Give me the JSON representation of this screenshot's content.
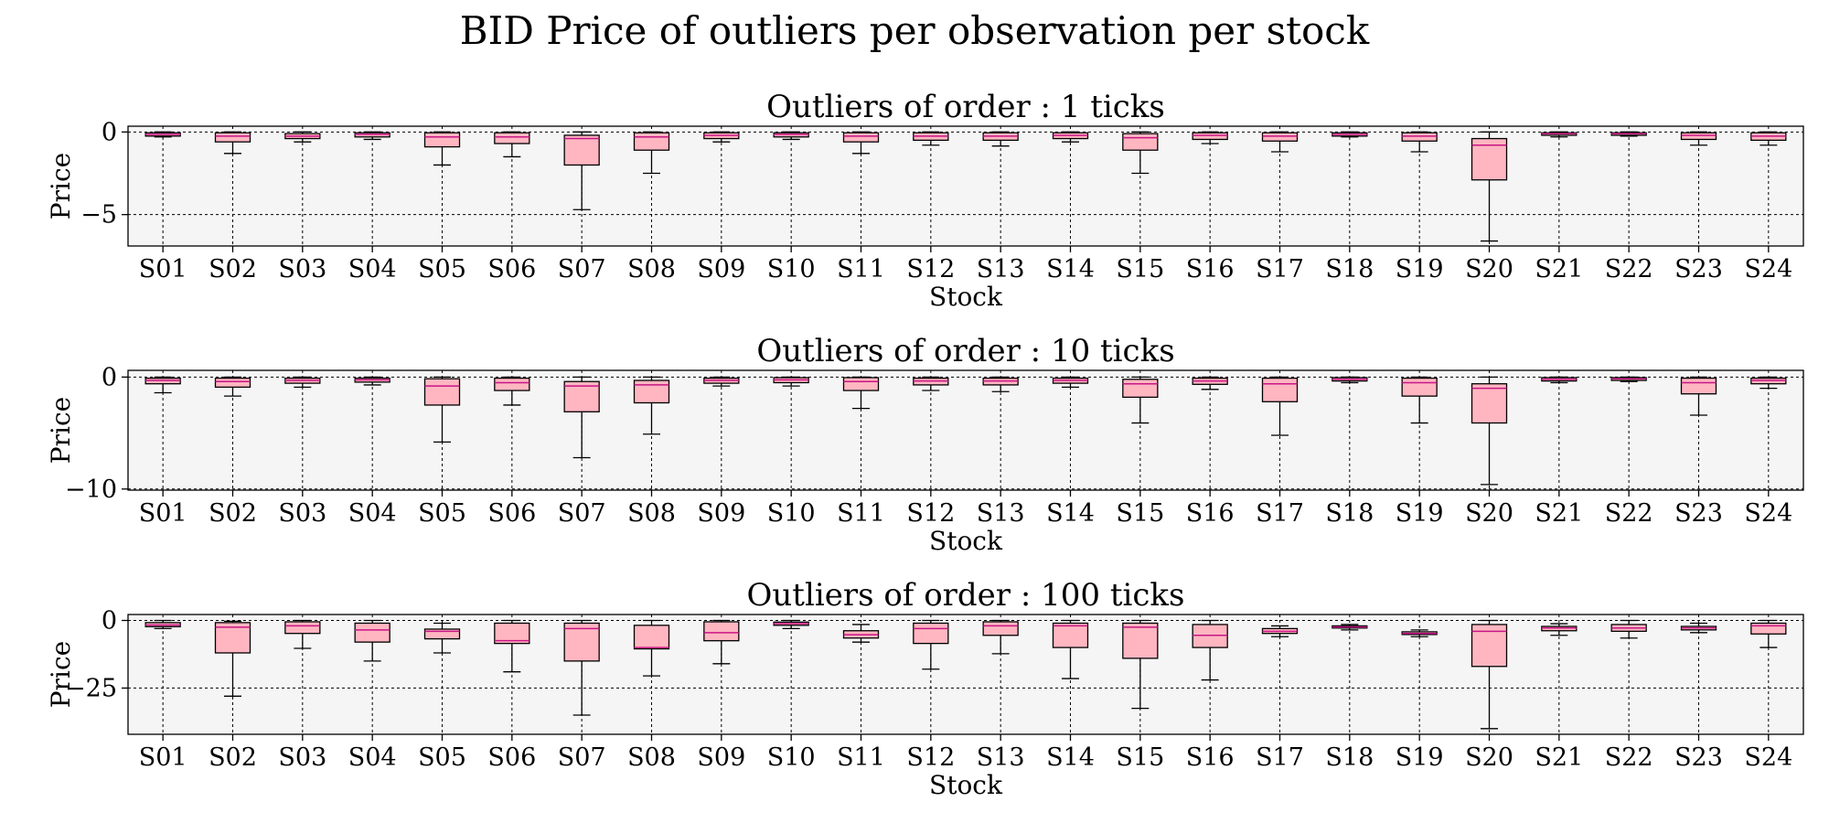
{
  "title": "BID Price of outliers per observation per stock",
  "colors": {
    "box_fill": "#ffb6c1",
    "box_edge": "#000000",
    "median": "#c71585",
    "axes_bg": "#f5f5f5",
    "grid": "#000000"
  },
  "chart_data": [
    {
      "type": "box",
      "title": "Outliers of order : 1 ticks",
      "xlabel": "Stock",
      "ylabel": "Price",
      "ylim": [
        -6.9,
        0.35
      ],
      "yticks": [
        0,
        -5
      ],
      "ytick_labels": [
        "0",
        "−5"
      ],
      "grid": true,
      "categories": [
        "S01",
        "S02",
        "S03",
        "S04",
        "S05",
        "S06",
        "S07",
        "S08",
        "S09",
        "S10",
        "S11",
        "S12",
        "S13",
        "S14",
        "S15",
        "S16",
        "S17",
        "S18",
        "S19",
        "S20",
        "S21",
        "S22",
        "S23",
        "S24"
      ],
      "boxes": [
        {
          "whislo": -0.3,
          "q1": -0.25,
          "med": -0.15,
          "q3": -0.05,
          "whishi": 0
        },
        {
          "whislo": -1.3,
          "q1": -0.6,
          "med": -0.25,
          "q3": -0.05,
          "whishi": 0
        },
        {
          "whislo": -0.6,
          "q1": -0.4,
          "med": -0.25,
          "q3": -0.1,
          "whishi": 0
        },
        {
          "whislo": -0.45,
          "q1": -0.3,
          "med": -0.15,
          "q3": -0.05,
          "whishi": 0
        },
        {
          "whislo": -2.0,
          "q1": -0.9,
          "med": -0.3,
          "q3": -0.05,
          "whishi": 0
        },
        {
          "whislo": -1.5,
          "q1": -0.7,
          "med": -0.3,
          "q3": -0.05,
          "whishi": 0
        },
        {
          "whislo": -4.7,
          "q1": -2.0,
          "med": -0.4,
          "q3": -0.2,
          "whishi": 0
        },
        {
          "whislo": -2.5,
          "q1": -1.1,
          "med": -0.3,
          "q3": -0.05,
          "whishi": 0
        },
        {
          "whislo": -0.6,
          "q1": -0.4,
          "med": -0.2,
          "q3": -0.05,
          "whishi": 0
        },
        {
          "whislo": -0.45,
          "q1": -0.3,
          "med": -0.15,
          "q3": -0.05,
          "whishi": 0
        },
        {
          "whislo": -1.3,
          "q1": -0.6,
          "med": -0.25,
          "q3": -0.05,
          "whishi": 0
        },
        {
          "whislo": -0.8,
          "q1": -0.5,
          "med": -0.25,
          "q3": -0.05,
          "whishi": 0
        },
        {
          "whislo": -0.85,
          "q1": -0.5,
          "med": -0.25,
          "q3": -0.05,
          "whishi": 0
        },
        {
          "whislo": -0.6,
          "q1": -0.4,
          "med": -0.2,
          "q3": -0.05,
          "whishi": 0
        },
        {
          "whislo": -2.5,
          "q1": -1.1,
          "med": -0.35,
          "q3": -0.1,
          "whishi": 0
        },
        {
          "whislo": -0.7,
          "q1": -0.45,
          "med": -0.2,
          "q3": -0.05,
          "whishi": 0
        },
        {
          "whislo": -1.2,
          "q1": -0.55,
          "med": -0.25,
          "q3": -0.05,
          "whishi": 0
        },
        {
          "whislo": -0.3,
          "q1": -0.25,
          "med": -0.15,
          "q3": -0.05,
          "whishi": 0
        },
        {
          "whislo": -1.2,
          "q1": -0.55,
          "med": -0.25,
          "q3": -0.05,
          "whishi": 0
        },
        {
          "whislo": -6.6,
          "q1": -2.9,
          "med": -0.8,
          "q3": -0.4,
          "whishi": 0
        },
        {
          "whislo": -0.3,
          "q1": -0.2,
          "med": -0.1,
          "q3": -0.05,
          "whishi": 0
        },
        {
          "whislo": -0.25,
          "q1": -0.2,
          "med": -0.1,
          "q3": -0.05,
          "whishi": 0
        },
        {
          "whislo": -0.8,
          "q1": -0.45,
          "med": -0.2,
          "q3": -0.05,
          "whishi": 0
        },
        {
          "whislo": -0.8,
          "q1": -0.5,
          "med": -0.25,
          "q3": -0.05,
          "whishi": 0
        }
      ]
    },
    {
      "type": "box",
      "title": "Outliers of order : 10 ticks",
      "xlabel": "Stock",
      "ylabel": "Price",
      "ylim": [
        -10.1,
        0.6
      ],
      "yticks": [
        0,
        -10
      ],
      "ytick_labels": [
        "0",
        "−10"
      ],
      "grid": true,
      "categories": [
        "S01",
        "S02",
        "S03",
        "S04",
        "S05",
        "S06",
        "S07",
        "S08",
        "S09",
        "S10",
        "S11",
        "S12",
        "S13",
        "S14",
        "S15",
        "S16",
        "S17",
        "S18",
        "S19",
        "S20",
        "S21",
        "S22",
        "S23",
        "S24"
      ],
      "boxes": [
        {
          "whislo": -1.4,
          "q1": -0.6,
          "med": -0.3,
          "q3": -0.1,
          "whishi": 0
        },
        {
          "whislo": -1.7,
          "q1": -0.9,
          "med": -0.4,
          "q3": -0.1,
          "whishi": 0
        },
        {
          "whislo": -0.9,
          "q1": -0.55,
          "med": -0.3,
          "q3": -0.1,
          "whishi": 0
        },
        {
          "whislo": -0.7,
          "q1": -0.45,
          "med": -0.25,
          "q3": -0.1,
          "whishi": 0
        },
        {
          "whislo": -5.8,
          "q1": -2.5,
          "med": -0.8,
          "q3": -0.15,
          "whishi": 0
        },
        {
          "whislo": -2.5,
          "q1": -1.2,
          "med": -0.5,
          "q3": -0.1,
          "whishi": 0
        },
        {
          "whislo": -7.2,
          "q1": -3.1,
          "med": -0.8,
          "q3": -0.4,
          "whishi": 0
        },
        {
          "whislo": -5.1,
          "q1": -2.3,
          "med": -0.7,
          "q3": -0.3,
          "whishi": 0
        },
        {
          "whislo": -0.8,
          "q1": -0.55,
          "med": -0.3,
          "q3": -0.1,
          "whishi": 0
        },
        {
          "whislo": -0.8,
          "q1": -0.5,
          "med": -0.25,
          "q3": -0.05,
          "whishi": 0
        },
        {
          "whislo": -2.8,
          "q1": -1.2,
          "med": -0.4,
          "q3": -0.05,
          "whishi": 0
        },
        {
          "whislo": -1.2,
          "q1": -0.7,
          "med": -0.35,
          "q3": -0.1,
          "whishi": 0
        },
        {
          "whislo": -1.3,
          "q1": -0.7,
          "med": -0.35,
          "q3": -0.1,
          "whishi": 0
        },
        {
          "whislo": -0.9,
          "q1": -0.55,
          "med": -0.3,
          "q3": -0.1,
          "whishi": 0
        },
        {
          "whislo": -4.1,
          "q1": -1.8,
          "med": -0.6,
          "q3": -0.2,
          "whishi": 0
        },
        {
          "whislo": -1.1,
          "q1": -0.65,
          "med": -0.35,
          "q3": -0.1,
          "whishi": 0
        },
        {
          "whislo": -5.2,
          "q1": -2.2,
          "med": -0.6,
          "q3": -0.1,
          "whishi": 0
        },
        {
          "whislo": -0.5,
          "q1": -0.35,
          "med": -0.2,
          "q3": -0.05,
          "whishi": 0
        },
        {
          "whislo": -4.1,
          "q1": -1.7,
          "med": -0.5,
          "q3": -0.1,
          "whishi": 0
        },
        {
          "whislo": -9.6,
          "q1": -4.1,
          "med": -1.0,
          "q3": -0.6,
          "whishi": 0
        },
        {
          "whislo": -0.5,
          "q1": -0.35,
          "med": -0.2,
          "q3": -0.05,
          "whishi": 0
        },
        {
          "whislo": -0.4,
          "q1": -0.3,
          "med": -0.15,
          "q3": -0.05,
          "whishi": 0
        },
        {
          "whislo": -3.4,
          "q1": -1.5,
          "med": -0.5,
          "q3": -0.1,
          "whishi": 0
        },
        {
          "whislo": -1.0,
          "q1": -0.6,
          "med": -0.3,
          "q3": -0.1,
          "whishi": 0
        }
      ]
    },
    {
      "type": "box",
      "title": "Outliers of order : 100 ticks",
      "xlabel": "Stock",
      "ylabel": "Price",
      "ylim": [
        -42.1,
        2.2
      ],
      "yticks": [
        0,
        -25
      ],
      "ytick_labels": [
        "0",
        "−25"
      ],
      "grid": true,
      "categories": [
        "S01",
        "S02",
        "S03",
        "S04",
        "S05",
        "S06",
        "S07",
        "S08",
        "S09",
        "S10",
        "S11",
        "S12",
        "S13",
        "S14",
        "S15",
        "S16",
        "S17",
        "S18",
        "S19",
        "S20",
        "S21",
        "S22",
        "S23",
        "S24"
      ],
      "boxes": [
        {
          "whislo": -3.0,
          "q1": -2.3,
          "med": -1.7,
          "q3": -0.8,
          "whishi": 0
        },
        {
          "whislo": -28.0,
          "q1": -12.0,
          "med": -2.5,
          "q3": -0.8,
          "whishi": -0.3
        },
        {
          "whislo": -10.3,
          "q1": -4.8,
          "med": -2.0,
          "q3": -0.5,
          "whishi": 0
        },
        {
          "whislo": -15.0,
          "q1": -8.0,
          "med": -3.5,
          "q3": -1.0,
          "whishi": 0
        },
        {
          "whislo": -12.0,
          "q1": -6.8,
          "med": -4.0,
          "q3": -3.2,
          "whishi": -1.0
        },
        {
          "whislo": -19.0,
          "q1": -8.5,
          "med": -7.5,
          "q3": -1.0,
          "whishi": 0
        },
        {
          "whislo": -35.0,
          "q1": -15.0,
          "med": -3.0,
          "q3": -1.0,
          "whishi": 0
        },
        {
          "whislo": -20.5,
          "q1": -10.5,
          "med": -10.0,
          "q3": -1.8,
          "whishi": 0
        },
        {
          "whislo": -16.0,
          "q1": -7.5,
          "med": -4.5,
          "q3": -0.5,
          "whishi": 0
        },
        {
          "whislo": -3.0,
          "q1": -1.8,
          "med": -1.2,
          "q3": -0.6,
          "whishi": 0
        },
        {
          "whislo": -8.0,
          "q1": -6.5,
          "med": -5.3,
          "q3": -3.8,
          "whishi": -1.5
        },
        {
          "whislo": -18.0,
          "q1": -8.5,
          "med": -3.0,
          "q3": -1.0,
          "whishi": 0
        },
        {
          "whislo": -12.3,
          "q1": -5.5,
          "med": -2.0,
          "q3": -0.5,
          "whishi": 0
        },
        {
          "whislo": -21.5,
          "q1": -10.0,
          "med": -2.0,
          "q3": -1.0,
          "whishi": 0
        },
        {
          "whislo": -32.5,
          "q1": -14.0,
          "med": -2.5,
          "q3": -1.0,
          "whishi": 0
        },
        {
          "whislo": -22.0,
          "q1": -10.0,
          "med": -5.5,
          "q3": -1.5,
          "whishi": 0
        },
        {
          "whislo": -6.0,
          "q1": -4.8,
          "med": -4.0,
          "q3": -3.0,
          "whishi": -2.0
        },
        {
          "whislo": -3.5,
          "q1": -2.8,
          "med": -2.4,
          "q3": -2.0,
          "whishi": -1.5
        },
        {
          "whislo": -6.0,
          "q1": -5.2,
          "med": -4.8,
          "q3": -4.2,
          "whishi": -3.5
        },
        {
          "whislo": -40.0,
          "q1": -17.0,
          "med": -4.0,
          "q3": -1.5,
          "whishi": 0
        },
        {
          "whislo": -5.5,
          "q1": -3.8,
          "med": -2.8,
          "q3": -2.2,
          "whishi": -1.2
        },
        {
          "whislo": -6.5,
          "q1": -4.0,
          "med": -2.8,
          "q3": -1.5,
          "whishi": 0
        },
        {
          "whislo": -4.5,
          "q1": -3.5,
          "med": -2.8,
          "q3": -2.2,
          "whishi": -1.0
        },
        {
          "whislo": -10.0,
          "q1": -5.0,
          "med": -2.0,
          "q3": -1.0,
          "whishi": 0
        }
      ]
    }
  ]
}
